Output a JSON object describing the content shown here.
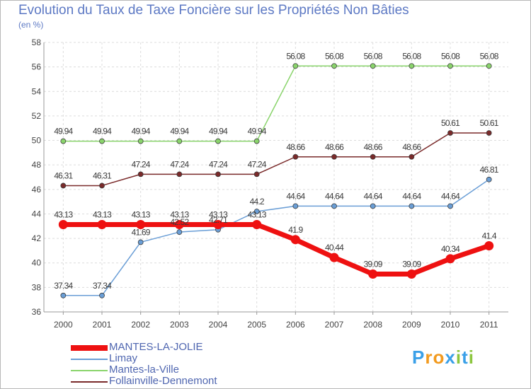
{
  "chart_data": {
    "type": "line",
    "title": "Evolution du Taux de Taxe Foncière sur les Propriétés Non Bâties",
    "subtitle": "(en %)",
    "xlabel": "",
    "ylabel": "",
    "x": [
      "2000",
      "2001",
      "2002",
      "2003",
      "2004",
      "2005",
      "2006",
      "2007",
      "2008",
      "2009",
      "2010",
      "2011"
    ],
    "ylim": [
      36,
      58
    ],
    "yticks": [
      "36",
      "38",
      "40",
      "42",
      "44",
      "46",
      "48",
      "50",
      "52",
      "54",
      "56",
      "58"
    ],
    "grid": true,
    "legend_position": "bottom-left",
    "series": [
      {
        "name": "MANTES-LA-JOLIE",
        "color": "#ee1111",
        "values": [
          43.13,
          43.13,
          43.13,
          43.13,
          43.13,
          43.13,
          41.9,
          40.44,
          39.09,
          39.09,
          40.34,
          41.4
        ],
        "labels": [
          "43.13",
          "43.13",
          "43.13",
          "43.13",
          "43.13",
          "43.13",
          "41.9",
          "40.44",
          "39.09",
          "39.09",
          "40.34",
          "41.4"
        ]
      },
      {
        "name": "Limay",
        "color": "#6a9ed6",
        "values": [
          37.34,
          37.34,
          41.69,
          42.52,
          42.71,
          44.2,
          44.64,
          44.64,
          44.64,
          44.64,
          44.64,
          46.81
        ],
        "labels": [
          "37.34",
          "37.34",
          "41.69",
          "42.52",
          "42.71",
          "44.2",
          "44.64",
          "44.64",
          "44.64",
          "44.64",
          "44.64",
          "46.81"
        ]
      },
      {
        "name": "Mantes-la-Ville",
        "color": "#8ad46c",
        "values": [
          49.94,
          49.94,
          49.94,
          49.94,
          49.94,
          49.94,
          56.08,
          56.08,
          56.08,
          56.08,
          56.08,
          56.08
        ],
        "labels": [
          "49.94",
          "49.94",
          "49.94",
          "49.94",
          "49.94",
          "49.94",
          "56.08",
          "56.08",
          "56.08",
          "56.08",
          "56.08",
          "56.08"
        ]
      },
      {
        "name": "Follainville-Dennemont",
        "color": "#7a2a2a",
        "values": [
          46.31,
          46.31,
          47.24,
          47.24,
          47.24,
          47.24,
          48.66,
          48.66,
          48.66,
          48.66,
          50.61,
          50.61
        ],
        "labels": [
          "46.31",
          "46.31",
          "47.24",
          "47.24",
          "47.24",
          "47.24",
          "48.66",
          "48.66",
          "48.66",
          "48.66",
          "50.61",
          "50.61"
        ]
      }
    ]
  },
  "legend": {
    "items": [
      "MANTES-LA-JOLIE",
      "Limay",
      "Mantes-la-Ville",
      "Follainville-Dennemont"
    ]
  },
  "logo": {
    "letters": [
      "P",
      "r",
      "o",
      "x",
      "i",
      "t",
      "i"
    ],
    "colors": [
      "#3aa0e8",
      "#f29a1e",
      "#f29a1e",
      "#3aa0e8",
      "#8cc63f",
      "#3aa0e8",
      "#8cc63f"
    ]
  }
}
